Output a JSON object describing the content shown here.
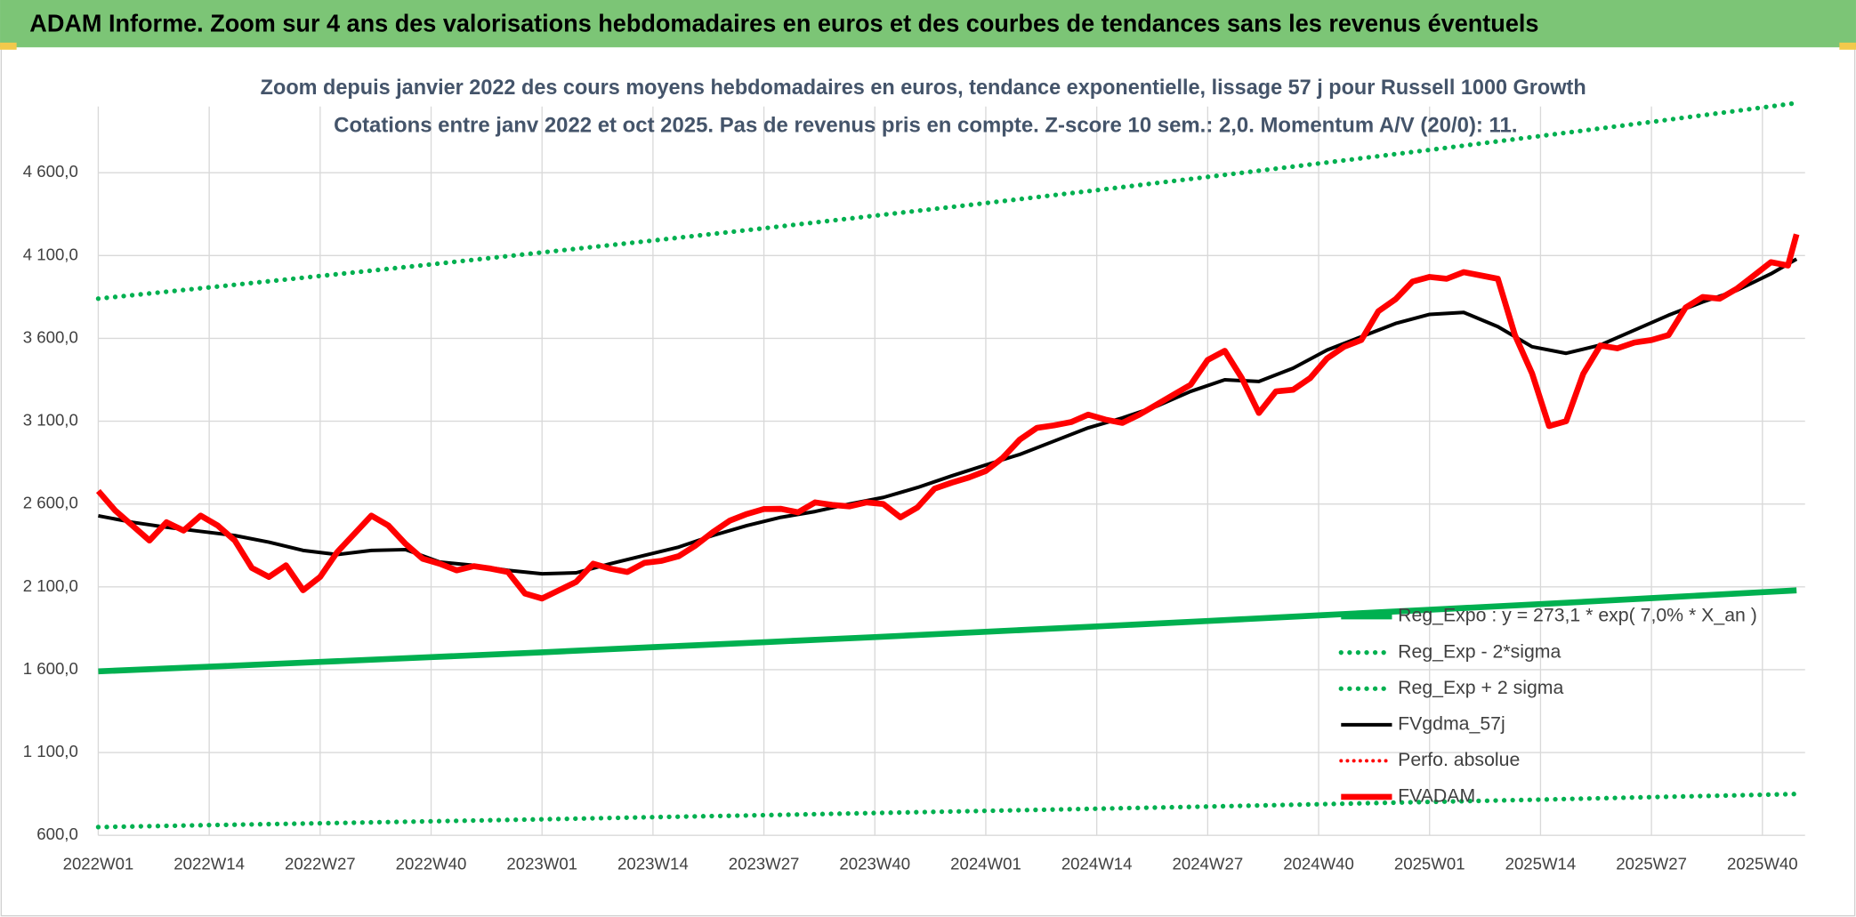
{
  "chart_data": {
    "type": "line",
    "title": "ADAM Informe. Zoom sur 4 ans des valorisations hebdomadaires en euros et des courbes de tendances sans les revenus éventuels",
    "subtitle": [
      "Zoom depuis janvier 2022 des cours moyens hebdomadaires en euros, tendance exponentielle, lissage 57 j pour Russell 1000 Growth",
      "Cotations entre janv 2022 et oct 2025. Pas de revenus pris en compte. Z-score 10 sem.: 2,0. Momentum A/V (20/0): 11."
    ],
    "xlim": [
      0,
      200
    ],
    "xticks": [
      {
        "value": 0,
        "label": "2022W01"
      },
      {
        "value": 13,
        "label": "2022W14"
      },
      {
        "value": 26,
        "label": "2022W27"
      },
      {
        "value": 39,
        "label": "2022W40"
      },
      {
        "value": 52,
        "label": "2023W01"
      },
      {
        "value": 65,
        "label": "2023W14"
      },
      {
        "value": 78,
        "label": "2023W27"
      },
      {
        "value": 91,
        "label": "2023W40"
      },
      {
        "value": 104,
        "label": "2024W01"
      },
      {
        "value": 117,
        "label": "2024W14"
      },
      {
        "value": 130,
        "label": "2024W27"
      },
      {
        "value": 143,
        "label": "2024W40"
      },
      {
        "value": 156,
        "label": "2025W01"
      },
      {
        "value": 169,
        "label": "2025W14"
      },
      {
        "value": 182,
        "label": "2025W27"
      },
      {
        "value": 195,
        "label": "2025W40"
      }
    ],
    "ylim": [
      600,
      5000
    ],
    "yticks": [
      {
        "value": 600,
        "label": "600,0"
      },
      {
        "value": 1100,
        "label": "1 100,0"
      },
      {
        "value": 1600,
        "label": "1 600,0"
      },
      {
        "value": 2100,
        "label": "2 100,0"
      },
      {
        "value": 2600,
        "label": "2 600,0"
      },
      {
        "value": 3100,
        "label": "3 100,0"
      },
      {
        "value": 3600,
        "label": "3 600,0"
      },
      {
        "value": 4100,
        "label": "4 100,0"
      },
      {
        "value": 4600,
        "label": "4 600,0"
      }
    ],
    "grid": true,
    "series": [
      {
        "name": "Reg_Expo : y = 273,1 * exp( 7,0% *  X_an )",
        "color": "#00b050",
        "style": "solid",
        "width": 5,
        "x": [
          0,
          13,
          26,
          39,
          52,
          65,
          78,
          91,
          104,
          117,
          130,
          143,
          156,
          169,
          182,
          195,
          199
        ],
        "values": [
          1590,
          1618,
          1647,
          1676,
          1705,
          1736,
          1766,
          1797,
          1829,
          1861,
          1894,
          1928,
          1962,
          1996,
          2032,
          2068,
          2079
        ]
      },
      {
        "name": "Reg_Exp - 2*sigma",
        "color": "#00b050",
        "style": "dotted",
        "width": 4,
        "x": [
          0,
          13,
          26,
          39,
          52,
          65,
          78,
          91,
          104,
          117,
          130,
          143,
          156,
          169,
          182,
          195,
          199
        ],
        "values": [
          650,
          662,
          673,
          685,
          697,
          710,
          722,
          735,
          748,
          761,
          774,
          788,
          802,
          816,
          831,
          845,
          850
        ]
      },
      {
        "name": "Reg_Exp + 2 sigma",
        "color": "#00b050",
        "style": "dotted",
        "width": 4,
        "x": [
          0,
          13,
          26,
          39,
          52,
          65,
          78,
          91,
          104,
          117,
          130,
          143,
          156,
          169,
          182,
          195,
          199
        ],
        "values": [
          3840,
          3908,
          3977,
          4047,
          4119,
          4191,
          4265,
          4341,
          4417,
          4495,
          4575,
          4656,
          4738,
          4822,
          4907,
          4994,
          5021
        ]
      },
      {
        "name": "FVgdma_57j",
        "color": "#000000",
        "style": "solid",
        "width": 3,
        "x": [
          0,
          4,
          8,
          12,
          16,
          20,
          24,
          28,
          32,
          36,
          40,
          44,
          48,
          52,
          56,
          60,
          64,
          68,
          72,
          76,
          80,
          84,
          88,
          92,
          96,
          100,
          104,
          108,
          112,
          116,
          120,
          124,
          128,
          132,
          136,
          140,
          144,
          148,
          152,
          156,
          160,
          164,
          168,
          172,
          176,
          180,
          184,
          188,
          192,
          196,
          199
        ],
        "values": [
          2529,
          2490,
          2460,
          2435,
          2410,
          2370,
          2320,
          2295,
          2320,
          2325,
          2250,
          2230,
          2200,
          2179,
          2185,
          2240,
          2290,
          2340,
          2410,
          2470,
          2520,
          2555,
          2600,
          2640,
          2700,
          2770,
          2836,
          2900,
          2980,
          3060,
          3120,
          3190,
          3280,
          3350,
          3340,
          3420,
          3530,
          3610,
          3690,
          3745,
          3757,
          3671,
          3550,
          3510,
          3560,
          3650,
          3740,
          3820,
          3890,
          3990,
          4079
        ]
      },
      {
        "name": "Perfo. absolue",
        "color": "#ff0000",
        "style": "dotted",
        "width": 3,
        "x": [],
        "values": []
      },
      {
        "name": "FVADAM",
        "color": "#ff0000",
        "style": "solid",
        "width": 5,
        "x": [
          0,
          2,
          4,
          6,
          8,
          10,
          12,
          14,
          16,
          18,
          20,
          22,
          24,
          26,
          28,
          30,
          32,
          34,
          36,
          38,
          40,
          42,
          44,
          46,
          48,
          50,
          52,
          54,
          56,
          58,
          60,
          62,
          64,
          66,
          68,
          70,
          72,
          74,
          76,
          78,
          80,
          82,
          84,
          86,
          88,
          90,
          92,
          94,
          96,
          98,
          100,
          102,
          104,
          106,
          108,
          110,
          112,
          114,
          116,
          118,
          120,
          122,
          124,
          126,
          128,
          130,
          132,
          134,
          136,
          138,
          140,
          142,
          144,
          146,
          148,
          150,
          152,
          154,
          156,
          158,
          160,
          162,
          164,
          166,
          168,
          170,
          172,
          174,
          176,
          178,
          180,
          182,
          184,
          186,
          188,
          190,
          192,
          194,
          196,
          198,
          199
        ],
        "values": [
          2679,
          2560,
          2470,
          2380,
          2490,
          2440,
          2530,
          2470,
          2380,
          2214,
          2160,
          2230,
          2080,
          2160,
          2310,
          2420,
          2530,
          2470,
          2360,
          2270,
          2240,
          2200,
          2225,
          2210,
          2190,
          2060,
          2030,
          2080,
          2130,
          2240,
          2210,
          2190,
          2245,
          2257,
          2285,
          2350,
          2430,
          2500,
          2540,
          2570,
          2571,
          2550,
          2610,
          2595,
          2586,
          2610,
          2600,
          2520,
          2580,
          2693,
          2729,
          2760,
          2800,
          2880,
          2990,
          3060,
          3075,
          3095,
          3140,
          3110,
          3090,
          3140,
          3200,
          3260,
          3320,
          3470,
          3525,
          3360,
          3150,
          3280,
          3290,
          3360,
          3480,
          3550,
          3590,
          3764,
          3836,
          3943,
          3971,
          3960,
          4000,
          3980,
          3960,
          3620,
          3390,
          3071,
          3100,
          3386,
          3557,
          3540,
          3575,
          3590,
          3620,
          3786,
          3850,
          3840,
          3900,
          3980,
          4060,
          4040,
          4229
        ]
      }
    ]
  }
}
